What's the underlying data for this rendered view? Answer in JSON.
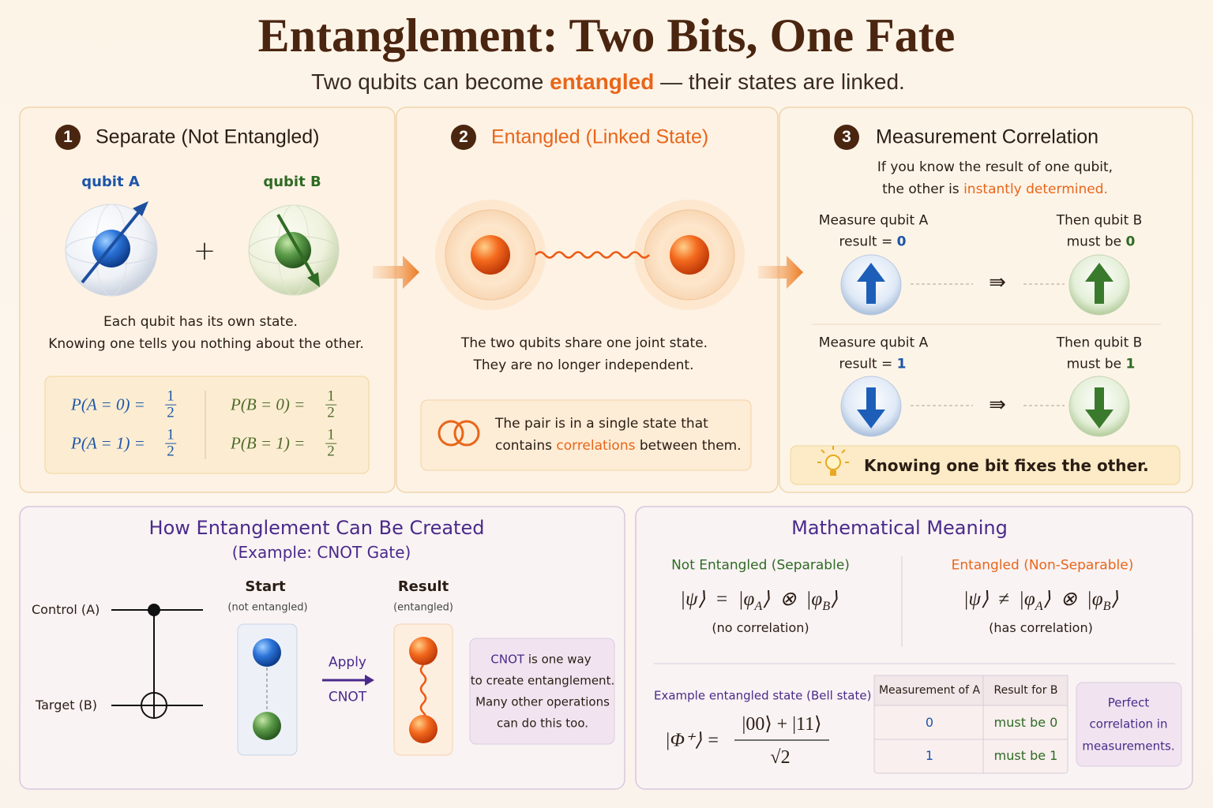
{
  "header": {
    "title": "Entanglement: Two Bits, One Fate",
    "subtitle": [
      "Two qubits can become ",
      "entangled",
      " — their states are linked."
    ]
  },
  "separate": {
    "number": "1",
    "title": "Separate (Not Entangled)",
    "qubit_a": "qubit A",
    "qubit_b": "qubit B",
    "plus": "+",
    "caption": [
      "Each qubit has its own state.",
      "Knowing one tells you nothing about the other."
    ],
    "probabilities": [
      {
        "lhs": "P(A = 0) =",
        "numerator": "1",
        "denominator": "2"
      },
      {
        "lhs": "P(A = 1) =",
        "numerator": "1",
        "denominator": "2"
      },
      {
        "lhs": "P(B = 0) =",
        "numerator": "1",
        "denominator": "2"
      },
      {
        "lhs": "P(B = 1) =",
        "numerator": "1",
        "denominator": "2"
      }
    ]
  },
  "entangled": {
    "number": "2",
    "title": "Entangled (Linked State)",
    "caption": [
      "The two qubits share one joint state.",
      "They are no longer independent."
    ],
    "note": {
      "line1": "The pair is in a single state that",
      "line2": [
        "contains ",
        "correlations",
        " between them."
      ]
    }
  },
  "measurement": {
    "number": "3",
    "title": "Measurement Correlation",
    "intro": {
      "line1": "If you know the result of one qubit,",
      "line2": [
        "the other is ",
        "instantly determined."
      ]
    },
    "rows": [
      {
        "measure": "Measure qubit A",
        "result_text": "result = ",
        "result": "0",
        "implies": "⇛",
        "then": "Then qubit B",
        "must_text": "must be ",
        "must": "0"
      },
      {
        "measure": "Measure qubit A",
        "result_text": "result = ",
        "result": "1",
        "implies": "⇛",
        "then": "Then qubit B",
        "must_text": "must be ",
        "must": "1"
      }
    ],
    "tip": "Knowing one bit fixes the other."
  },
  "creation": {
    "title": "How Entanglement Can Be Created",
    "subtitle": "(Example: CNOT Gate)",
    "control": "Control (A)",
    "target": "Target (B)",
    "start": "Start",
    "start_note": "(not entangled)",
    "apply": "Apply",
    "gate": "CNOT",
    "result": "Result",
    "result_note": "(entangled)",
    "note": {
      "line1": [
        "CNOT",
        " is one way"
      ],
      "lines": [
        "to create entanglement.",
        "Many other operations",
        "can do this too."
      ]
    }
  },
  "math": {
    "title": "Mathematical Meaning",
    "separable": {
      "label": "Not Entangled (Separable)",
      "formula": [
        "|ψ⟩ = |φ",
        "A",
        "⟩ ⊗ |φ",
        "B",
        "⟩"
      ],
      "note": "(no correlation)"
    },
    "non_separable": {
      "label": "Entangled (Non-Separable)",
      "formula": [
        "|ψ⟩ ≠ |φ",
        "A",
        "⟩ ⊗ |φ",
        "B",
        "⟩"
      ],
      "note": "(has correlation)"
    },
    "example_label": "Example entangled state (Bell state)",
    "bell": {
      "lhs": "|Φ⁺⟩ =",
      "numerator": "|00⟩ + |11⟩",
      "denominator": "√2"
    },
    "table": {
      "headers": [
        "Measurement of A",
        "Result for B"
      ],
      "rows": [
        [
          "0",
          "must be 0"
        ],
        [
          "1",
          "must be 1"
        ]
      ]
    },
    "note": [
      "Perfect",
      "correlation in",
      "measurements."
    ]
  }
}
